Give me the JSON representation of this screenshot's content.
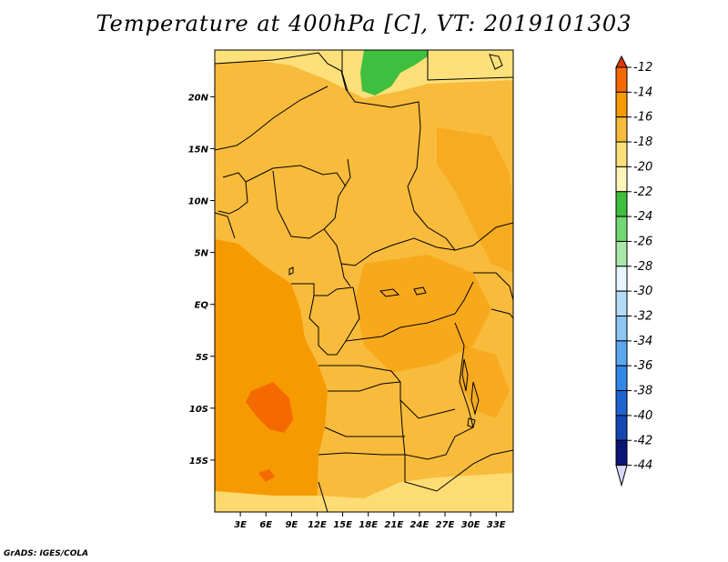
{
  "chart_data": {
    "type": "heatmap",
    "title": "Temperature at 400hPa [C], VT: 2019101303",
    "x_ticks": [
      "3E",
      "6E",
      "9E",
      "12E",
      "15E",
      "18E",
      "21E",
      "24E",
      "27E",
      "30E",
      "33E"
    ],
    "y_ticks": [
      "20N",
      "15N",
      "10N",
      "5N",
      "EQ",
      "5S",
      "10S",
      "15S"
    ],
    "xlim": [
      0,
      35
    ],
    "ylim": [
      -20,
      24.5
    ],
    "colorbar": {
      "levels": [
        -12,
        -14,
        -16,
        -18,
        -20,
        -22,
        -24,
        -26,
        -28,
        -30,
        -32,
        -34,
        -36,
        -38,
        -40,
        -42,
        -44
      ],
      "colors": [
        "#e03800",
        "#f56a00",
        "#f59a00",
        "#f8bb3c",
        "#fde07a",
        "#fff5b8",
        "#3fbf3f",
        "#73d873",
        "#aae8aa",
        "#e6f6ff",
        "#b4dcf8",
        "#8cc6f5",
        "#5aa8f0",
        "#3288e6",
        "#1e64d2",
        "#1446b4",
        "#0c1478",
        "#d8d8f8"
      ]
    },
    "fields": {
      "ocean": "#f59a00",
      "land": "#f8bb3c",
      "north_band": "#fde07a",
      "green_patch": "#3fbf3f",
      "warm_core": "#f56a00"
    }
  },
  "credit": "GrADS: IGES/COLA"
}
